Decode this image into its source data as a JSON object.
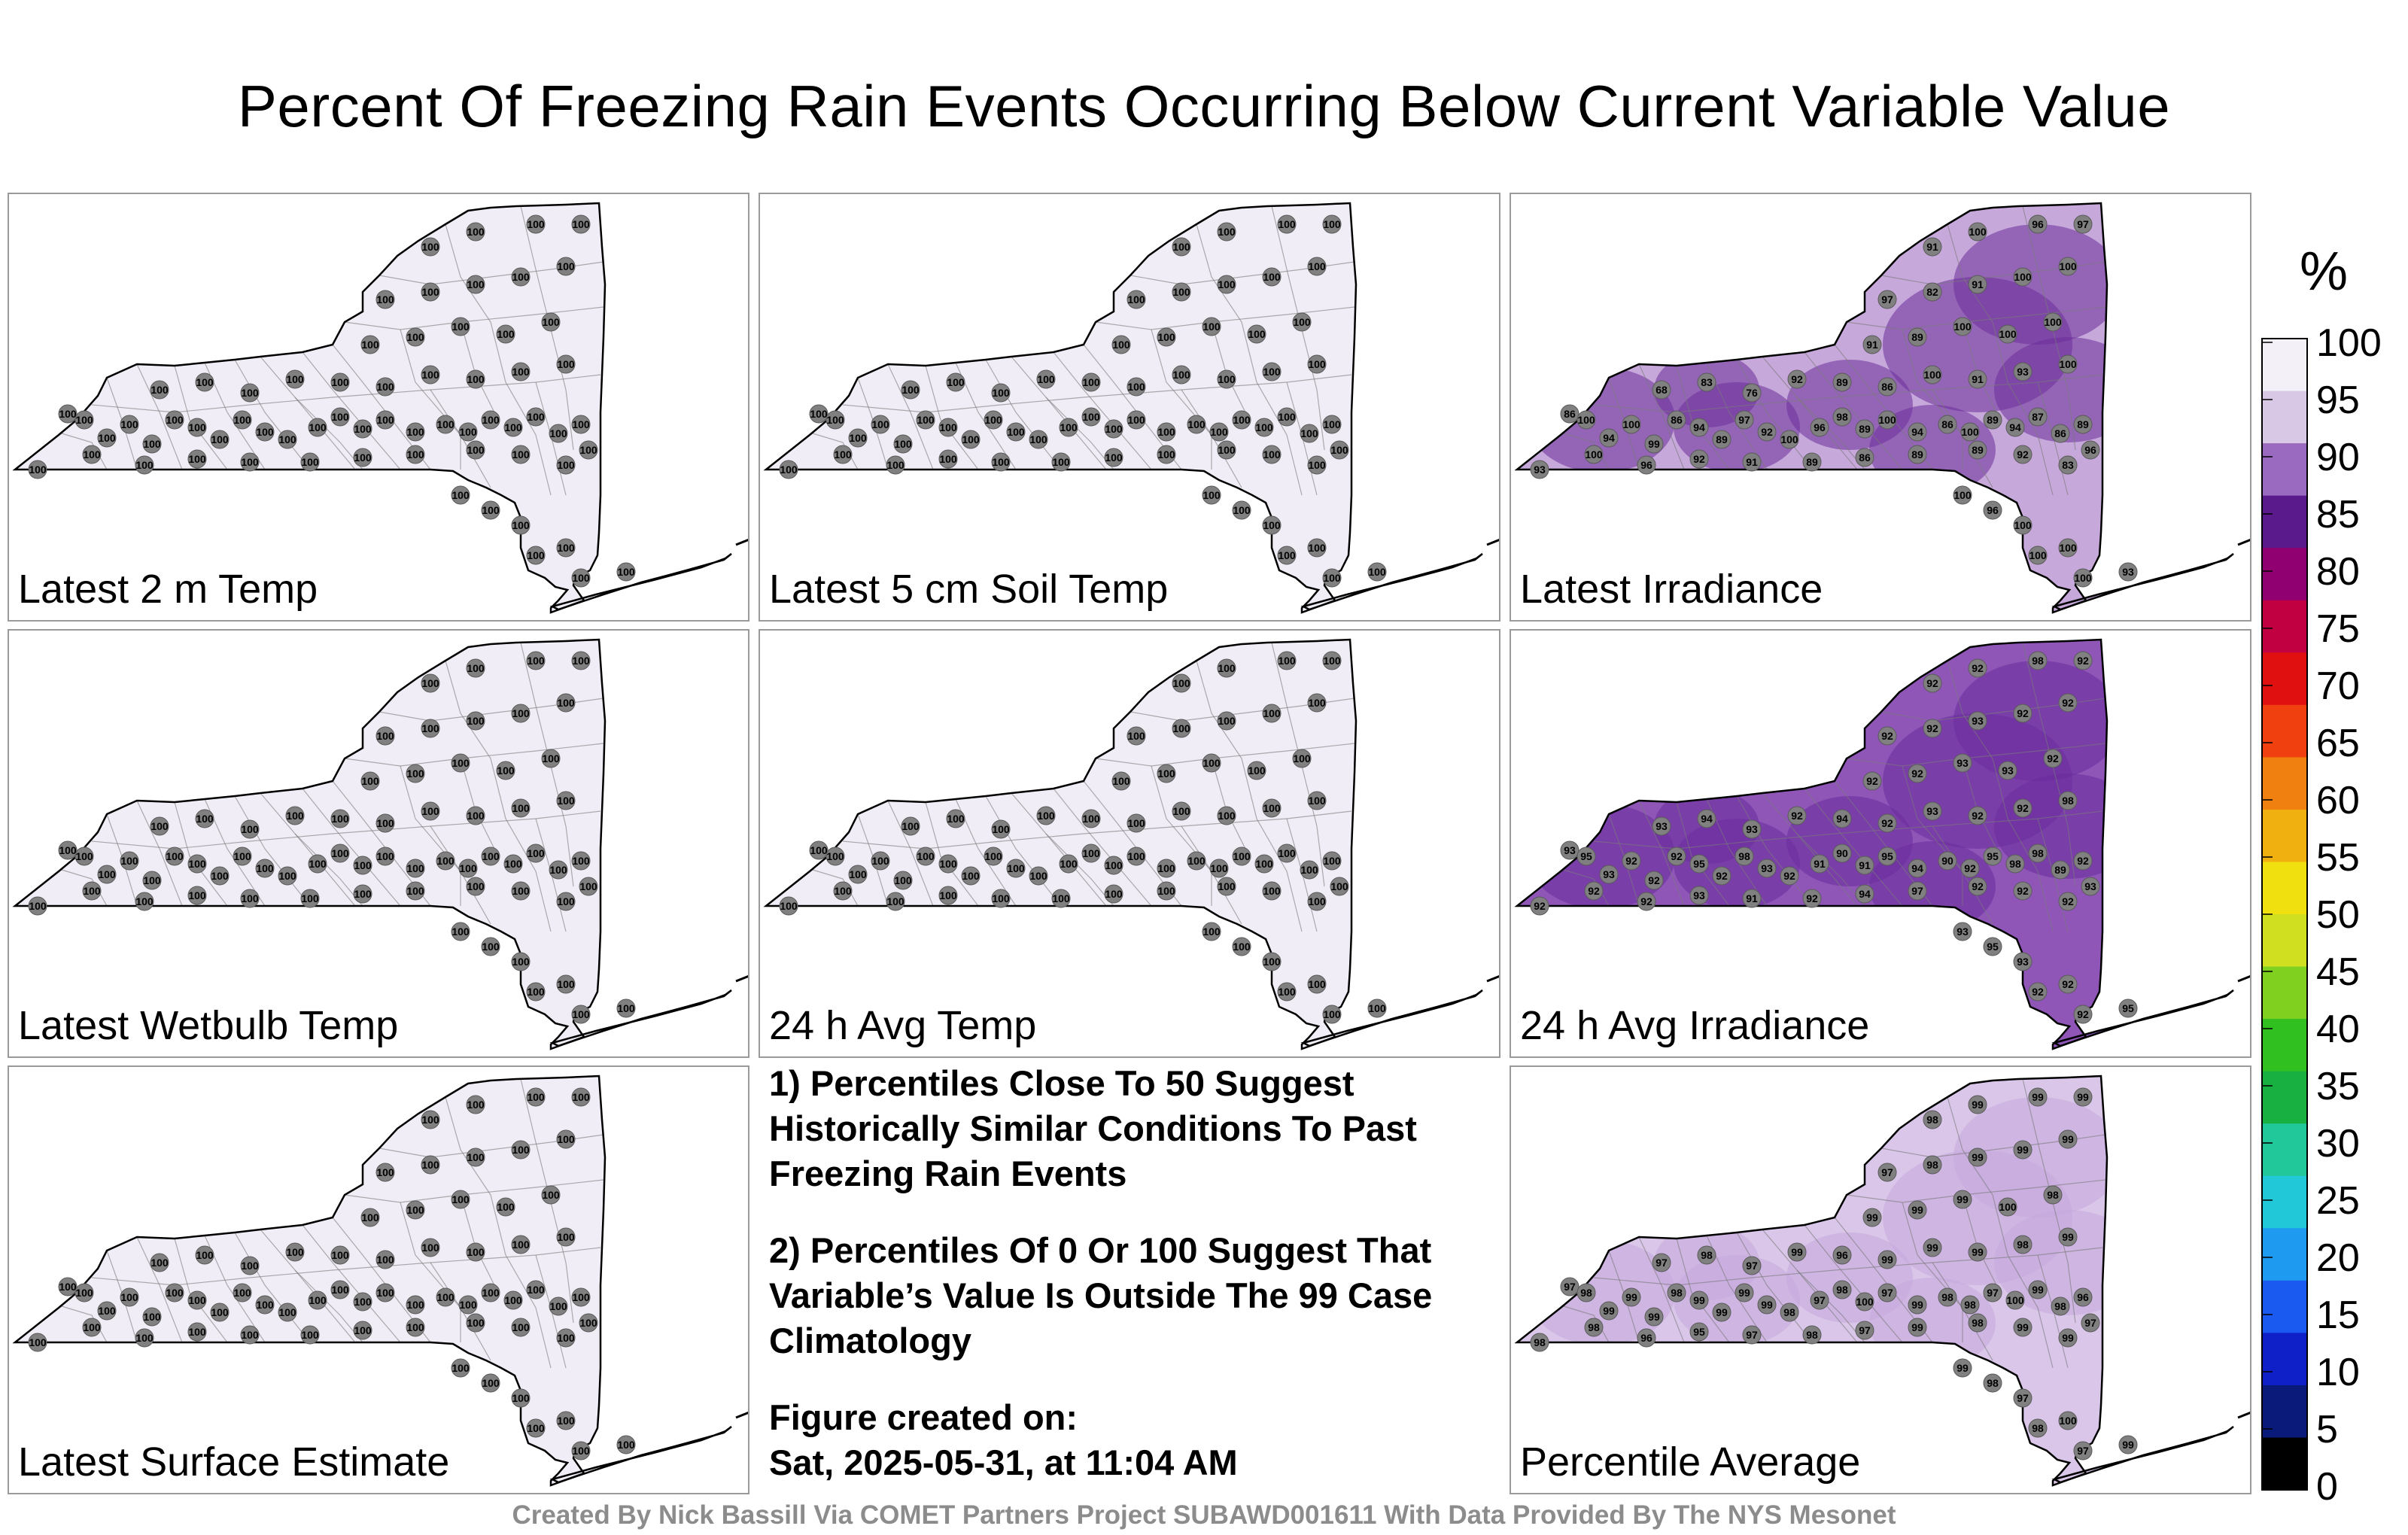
{
  "title": "Percent Of Freezing Rain Events Occurring Below Current Variable Value",
  "panels": [
    {
      "id": "temp2m",
      "label": "Latest 2 m Temp",
      "values": [
        100
      ],
      "fill": "#f1edf6"
    },
    {
      "id": "soil5cm",
      "label": "Latest 5 cm Soil Temp",
      "values": [
        100
      ],
      "fill": "#f1edf6"
    },
    {
      "id": "irr",
      "label": "Latest Irradiance",
      "values": [
        93,
        86,
        100,
        94,
        100,
        99,
        86,
        94,
        89,
        97,
        92,
        100,
        96,
        98,
        89,
        100,
        94,
        86,
        100,
        89,
        94,
        87,
        86,
        89,
        96,
        100,
        96,
        92,
        91,
        89,
        86,
        89,
        89,
        92,
        83,
        68,
        83,
        76,
        92,
        89,
        86,
        100,
        91,
        93,
        100,
        91,
        89,
        100,
        100,
        100,
        97,
        82,
        91,
        100,
        100,
        91,
        100,
        96,
        97,
        100,
        96,
        100,
        100,
        100,
        100
      ],
      "fill": "#c6a8da",
      "accent": "#6b2d9a"
    },
    {
      "id": "wetbulb",
      "label": "Latest Wetbulb Temp",
      "values": [
        100
      ],
      "fill": "#f1edf6"
    },
    {
      "id": "avg24temp",
      "label": "24 h Avg Temp",
      "values": [
        100
      ],
      "fill": "#f1edf6"
    },
    {
      "id": "avg24irr",
      "label": "24 h Avg Irradiance",
      "values": [
        92,
        93,
        95,
        93,
        92,
        92,
        92,
        95,
        92,
        98,
        93,
        92,
        91,
        90,
        91,
        95,
        94,
        90,
        92,
        95,
        98,
        98,
        89,
        92,
        93,
        92,
        92,
        93,
        91,
        92,
        94,
        97,
        92,
        92,
        92,
        93,
        94,
        93,
        92,
        94,
        92,
        93,
        92,
        92,
        98,
        92,
        92,
        93,
        93,
        92,
        92,
        92,
        93,
        92,
        92,
        92,
        92,
        98
      ],
      "fill": "#8f56b8",
      "accent": "#6a2b9c"
    },
    {
      "id": "surface",
      "label": "Latest Surface Estimate",
      "values": [
        100
      ],
      "fill": "#f1edf6"
    },
    {
      "id": "average",
      "label": "Percentile Average",
      "values": [
        98,
        97,
        98,
        99,
        99,
        99,
        98,
        99,
        99,
        99,
        99,
        98,
        97,
        98,
        100,
        97,
        99,
        98,
        98,
        97,
        100,
        99,
        98,
        96,
        97,
        98,
        96,
        95,
        97,
        98,
        97,
        99,
        98,
        99,
        99,
        97,
        98,
        97,
        99,
        96,
        99,
        99,
        99,
        98,
        99,
        99,
        99,
        99,
        100
      ],
      "fill": "#d9c6e8",
      "accent": "#c4a8dc"
    }
  ],
  "notes": [
    "1) Percentiles Close To 50 Suggest Historically Similar Conditions To Past Freezing Rain Events",
    "2) Percentiles Of 0 Or 100 Suggest That Variable’s Value Is Outside The 99 Case Climatology"
  ],
  "figure_created_label": "Figure created on:",
  "figure_created_date": "Sat, 2025-05-31, at 11:04 AM",
  "footer": "Created By Nick Bassill Via COMET Partners Project SUBAWD001611 With Data Provided By The NYS Mesonet",
  "colorbar": {
    "unit": "%",
    "ticks": [
      0,
      5,
      10,
      15,
      20,
      25,
      30,
      35,
      40,
      45,
      50,
      55,
      60,
      65,
      70,
      75,
      80,
      85,
      90,
      95,
      100
    ],
    "colors": [
      "#000000",
      "#0a1a7a",
      "#1020c8",
      "#1a5af0",
      "#1e9af0",
      "#20c8d8",
      "#20c89a",
      "#18b040",
      "#30c020",
      "#80d020",
      "#d0e020",
      "#f0e010",
      "#f0b010",
      "#f08010",
      "#f04010",
      "#e01010",
      "#c00040",
      "#900070",
      "#5a1a8c",
      "#9a6ac0",
      "#d8c8e6",
      "#f4f0f8"
    ]
  }
}
